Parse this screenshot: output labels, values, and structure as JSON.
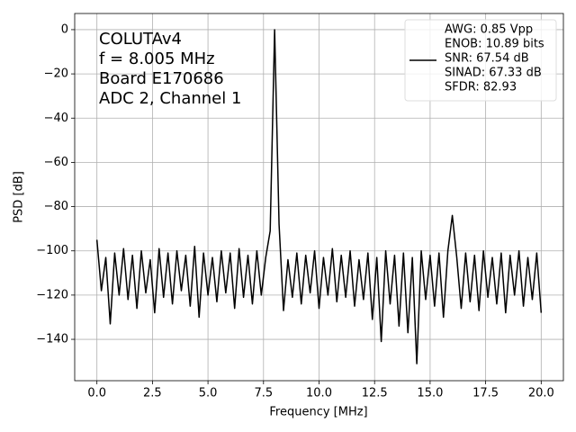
{
  "chart_data": {
    "type": "line",
    "xlabel": "Frequency [MHz]",
    "ylabel": "PSD [dB]",
    "annotation": [
      "COLUTAv4",
      "f = 8.005 MHz",
      "Board E170686",
      "ADC 2, Channel 1"
    ],
    "legend": [
      "AWG: 0.85 Vpp",
      "ENOB: 10.89 bits",
      "SNR: 67.54 dB",
      "SINAD: 67.33 dB",
      "SFDR: 82.93"
    ],
    "legend_position": "upper right",
    "grid": true,
    "xlim": [
      -1,
      21
    ],
    "ylim": [
      -158.7,
      7.3
    ],
    "xticks": [
      {
        "value": 0,
        "label": "0.0"
      },
      {
        "value": 2.5,
        "label": "2.5"
      },
      {
        "value": 5,
        "label": "5.0"
      },
      {
        "value": 7.5,
        "label": "7.5"
      },
      {
        "value": 10,
        "label": "10.0"
      },
      {
        "value": 12.5,
        "label": "12.5"
      },
      {
        "value": 15,
        "label": "15.0"
      },
      {
        "value": 17.5,
        "label": "17.5"
      },
      {
        "value": 20,
        "label": "20.0"
      }
    ],
    "yticks": [
      {
        "value": -140,
        "label": "−140"
      },
      {
        "value": -120,
        "label": "−120"
      },
      {
        "value": -100,
        "label": "−100"
      },
      {
        "value": -80,
        "label": "−80"
      },
      {
        "value": -60,
        "label": "−60"
      },
      {
        "value": -40,
        "label": "−40"
      },
      {
        "value": -20,
        "label": "−20"
      },
      0
    ],
    "x": [
      0,
      0.2,
      0.4,
      0.6,
      0.8,
      1,
      1.2,
      1.4,
      1.6,
      1.8,
      2,
      2.2,
      2.4,
      2.6,
      2.8,
      3,
      3.2,
      3.4,
      3.6,
      3.8,
      4,
      4.2,
      4.4,
      4.6,
      4.8,
      5,
      5.2,
      5.4,
      5.6,
      5.8,
      6,
      6.2,
      6.4,
      6.6,
      6.8,
      7,
      7.2,
      7.4,
      7.6,
      7.8,
      8,
      8.2,
      8.4,
      8.6,
      8.8,
      9,
      9.2,
      9.4,
      9.6,
      9.8,
      10,
      10.2,
      10.4,
      10.6,
      10.8,
      11,
      11.2,
      11.4,
      11.6,
      11.8,
      12,
      12.2,
      12.4,
      12.6,
      12.8,
      13,
      13.2,
      13.4,
      13.6,
      13.8,
      14,
      14.2,
      14.4,
      14.6,
      14.8,
      15,
      15.2,
      15.4,
      15.6,
      15.8,
      16,
      16.2,
      16.4,
      16.6,
      16.8,
      17,
      17.2,
      17.4,
      17.6,
      17.8,
      18,
      18.2,
      18.4,
      18.6,
      18.8,
      19,
      19.2,
      19.4,
      19.6,
      19.8,
      20
    ],
    "series": [
      {
        "color": "#000000",
        "values": [
          -95,
          -118,
          -103,
          -133,
          -101,
          -120,
          -99,
          -122,
          -102,
          -126,
          -100,
          -119,
          -104,
          -128,
          -99,
          -121,
          -101,
          -124,
          -100,
          -118,
          -102,
          -125,
          -98,
          -130,
          -101,
          -120,
          -103,
          -123,
          -100,
          -119,
          -101,
          -126,
          -99,
          -121,
          -102,
          -124,
          -100,
          -120,
          -103,
          -91,
          0,
          -88,
          -127,
          -104,
          -121,
          -101,
          -124,
          -102,
          -119,
          -100,
          -126,
          -103,
          -120,
          -99,
          -123,
          -102,
          -121,
          -100,
          -125,
          -104,
          -122,
          -101,
          -131,
          -103,
          -141,
          -100,
          -124,
          -102,
          -134,
          -101,
          -137,
          -103,
          -151,
          -100,
          -122,
          -102,
          -125,
          -101,
          -130,
          -100,
          -84,
          -103,
          -126,
          -101,
          -123,
          -102,
          -127,
          -100,
          -121,
          -103,
          -124,
          -101,
          -128,
          -102,
          -120,
          -100,
          -125,
          -103,
          -122,
          -101,
          -128
        ]
      }
    ]
  }
}
